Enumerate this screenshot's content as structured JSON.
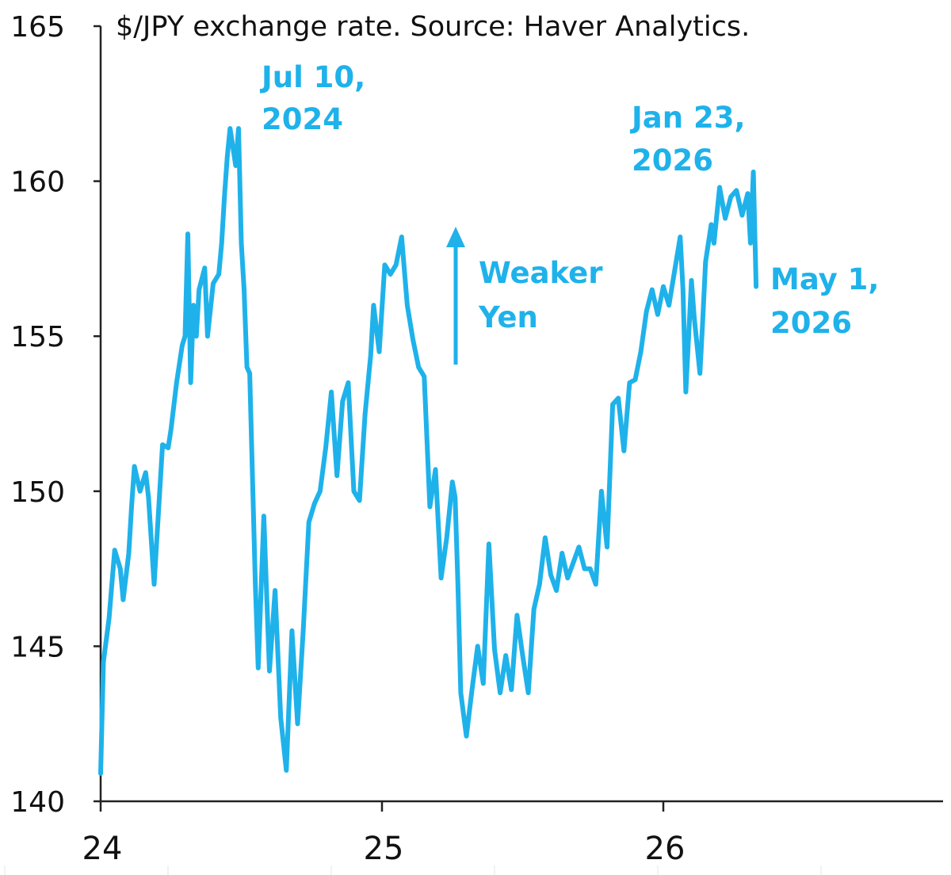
{
  "colors": {
    "series": "#1FB2EA",
    "axis": "#222222",
    "text": "#111111"
  },
  "chart_data": {
    "type": "line",
    "title": "$/JPY exchange rate. Source: Haver Analytics.",
    "xlabel": "",
    "ylabel": "",
    "xlim": [
      2024.0,
      2027.0
    ],
    "ylim": [
      140,
      165
    ],
    "yticks": [
      140,
      145,
      150,
      155,
      160,
      165
    ],
    "ytick_labels": [
      "140",
      "145",
      "150",
      "155",
      "160",
      "165"
    ],
    "xticks": [
      2024,
      2025,
      2026
    ],
    "xtick_labels": [
      "24",
      "25",
      "26"
    ],
    "grid": false,
    "legend": "none",
    "series": [
      {
        "x": [
          2024.0,
          2024.01,
          2024.03,
          2024.05,
          2024.07,
          2024.08,
          2024.1,
          2024.11,
          2024.12,
          2024.14,
          2024.16,
          2024.17,
          2024.19,
          2024.2,
          2024.22,
          2024.24,
          2024.25,
          2024.27,
          2024.29,
          2024.3,
          2024.31,
          2024.32,
          2024.33,
          2024.34,
          2024.35,
          2024.37,
          2024.38,
          2024.4,
          2024.42,
          2024.43,
          2024.44,
          2024.45,
          2024.46,
          2024.48,
          2024.49,
          2024.5,
          2024.51,
          2024.52,
          2024.53,
          2024.55,
          2024.56,
          2024.58,
          2024.6,
          2024.62,
          2024.64,
          2024.66,
          2024.68,
          2024.7,
          2024.72,
          2024.74,
          2024.76,
          2024.78,
          2024.8,
          2024.82,
          2024.84,
          2024.86,
          2024.88,
          2024.9,
          2024.92,
          2024.94,
          2024.96,
          2024.97,
          2024.99,
          2025.01,
          2025.03,
          2025.05,
          2025.07,
          2025.09,
          2025.11,
          2025.13,
          2025.15,
          2025.17,
          2025.19,
          2025.21,
          2025.23,
          2025.25,
          2025.26,
          2025.27,
          2025.28,
          2025.3,
          2025.32,
          2025.34,
          2025.36,
          2025.38,
          2025.4,
          2025.42,
          2025.44,
          2025.46,
          2025.48,
          2025.5,
          2025.52,
          2025.54,
          2025.56,
          2025.58,
          2025.6,
          2025.62,
          2025.64,
          2025.66,
          2025.68,
          2025.7,
          2025.72,
          2025.74,
          2025.76,
          2025.78,
          2025.8,
          2025.82,
          2025.84,
          2025.86,
          2025.88,
          2025.9,
          2025.92,
          2025.94,
          2025.96,
          2025.98,
          2026.0,
          2026.02,
          2026.04,
          2026.06,
          2026.07,
          2026.08,
          2026.1,
          2026.11,
          2026.13,
          2026.14,
          2026.15,
          2026.17,
          2026.18,
          2026.2,
          2026.22,
          2026.24,
          2026.26,
          2026.28,
          2026.3,
          2026.31,
          2026.32,
          2026.33
        ],
        "values": [
          140.9,
          144.5,
          145.9,
          148.1,
          147.5,
          146.5,
          148.0,
          149.5,
          150.8,
          150.0,
          150.6,
          149.8,
          147.0,
          148.5,
          151.5,
          151.4,
          152.0,
          153.5,
          154.7,
          155.0,
          158.3,
          153.5,
          156.0,
          155.0,
          156.5,
          157.2,
          155.0,
          156.7,
          157.0,
          158.0,
          159.5,
          160.8,
          161.7,
          160.5,
          161.7,
          158.0,
          156.5,
          154.0,
          153.8,
          147.0,
          144.3,
          149.2,
          144.2,
          146.8,
          142.7,
          141.0,
          145.5,
          142.5,
          145.5,
          149.0,
          149.6,
          150.0,
          151.4,
          153.2,
          150.5,
          152.9,
          153.5,
          150.0,
          149.7,
          152.5,
          154.4,
          156.0,
          154.5,
          157.3,
          157.0,
          157.3,
          158.2,
          156.0,
          154.9,
          154.0,
          153.7,
          149.5,
          150.7,
          147.2,
          148.5,
          150.3,
          149.8,
          147.0,
          143.5,
          142.1,
          143.6,
          145.0,
          143.8,
          148.3,
          144.9,
          143.5,
          144.7,
          143.6,
          146.0,
          144.7,
          143.5,
          146.2,
          147.0,
          148.5,
          147.3,
          146.8,
          148.0,
          147.2,
          147.7,
          148.2,
          147.5,
          147.5,
          147.0,
          150.0,
          148.2,
          152.8,
          153.0,
          151.3,
          153.5,
          153.6,
          154.5,
          155.8,
          156.5,
          155.7,
          156.6,
          156.0,
          157.1,
          158.2,
          156.5,
          153.2,
          156.8,
          155.6,
          153.8,
          155.5,
          157.4,
          158.6,
          158.0,
          159.8,
          158.8,
          159.5,
          159.7,
          158.9,
          159.6,
          158.0,
          160.3,
          156.6
        ],
        "color": "#1FB2EA"
      }
    ],
    "annotations": [
      {
        "id": "peak-2024",
        "lines": [
          "Jul 10,",
          "2024"
        ],
        "x": 2024.52,
        "y": 161.7
      },
      {
        "id": "peak-2026",
        "lines": [
          "Jan 23,",
          "2026"
        ],
        "x": 2026.06,
        "y": 159.9
      },
      {
        "id": "latest",
        "lines": [
          "May 1,",
          "2026"
        ],
        "x": 2026.33,
        "y": 156.6
      },
      {
        "id": "direction",
        "lines": [
          "Weaker",
          "Yen"
        ],
        "arrow": "up"
      }
    ]
  }
}
